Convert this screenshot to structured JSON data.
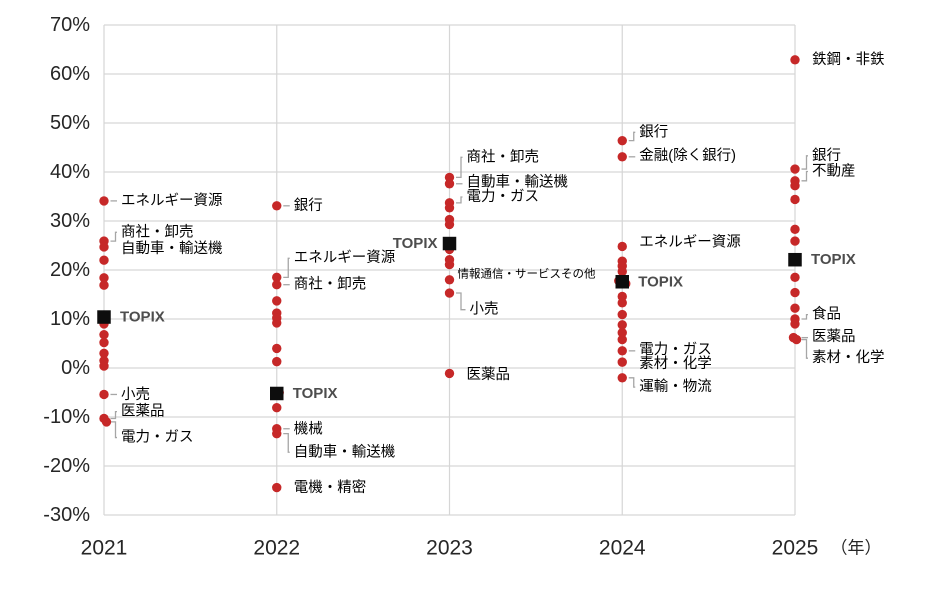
{
  "chart_data": {
    "type": "scatter",
    "title": "",
    "xlabel": "",
    "ylabel": "",
    "x_axis_unit": "（年）",
    "categories": [
      "2021",
      "2022",
      "2023",
      "2024",
      "2025"
    ],
    "y_ticks": [
      "70%",
      "60%",
      "50%",
      "40%",
      "30%",
      "20%",
      "10%",
      "0%",
      "-10%",
      "-20%",
      "-30%"
    ],
    "ylim": [
      -30,
      70
    ],
    "grid": true,
    "legend_position": "none",
    "colors": {
      "sector_dot": "#c62828",
      "topix_marker": "#0d0d0d",
      "gridline": "#d6d6d6",
      "leader": "#a6a6a6",
      "axis_text": "#262626",
      "label_text": "#000000",
      "topix_label_text": "#4d4d4d"
    },
    "series": [
      {
        "name": "TOPIX",
        "marker": "square",
        "values": [
          10.4,
          -5.2,
          25.4,
          17.6,
          22.1
        ],
        "label": "TOPIX",
        "label_sides": [
          "right",
          "right",
          "left",
          "right",
          "right"
        ]
      },
      {
        "name": "sectors",
        "marker": "dot",
        "values_by_year": [
          [
            34.1,
            25.9,
            24.7,
            22.0,
            18.4,
            16.9,
            9.0,
            6.8,
            5.2,
            3.0,
            1.5,
            0.4,
            -5.4,
            -10.3,
            {
              "v": -11.0,
              "dx": 2.5
            }
          ],
          [
            33.1,
            18.5,
            17.0,
            13.7,
            11.2,
            10.2,
            9.2,
            4.0,
            1.3,
            {
              "v": -5.0,
              "dx": 2.5
            },
            -8.1,
            -12.4,
            -13.4,
            -24.4
          ],
          [
            38.9,
            37.6,
            33.7,
            32.7,
            30.3,
            29.3,
            24.2,
            22.1,
            21.1,
            18.0,
            15.3,
            -1.1
          ],
          [
            46.4,
            43.1,
            24.8,
            21.8,
            20.8,
            19.7,
            {
              "v": 17.8,
              "dx": -3.5
            },
            {
              "v": 17.2,
              "dx": 3.5
            },
            14.6,
            13.3,
            10.9,
            8.8,
            7.2,
            5.8,
            3.5,
            1.2,
            -2.0
          ],
          [
            62.9,
            40.6,
            38.2,
            37.2,
            34.4,
            28.3,
            25.9,
            18.5,
            15.4,
            12.2,
            10.0,
            9.0,
            {
              "v": 6.2,
              "dx": -1.5
            },
            {
              "v": 5.8,
              "dx": 1.5
            }
          ]
        ]
      }
    ],
    "annotations": [
      {
        "year": 0,
        "text": "エネルギー資源",
        "dot": 34.1,
        "label": 34.1,
        "leader": "dash"
      },
      {
        "year": 0,
        "text": "商社・卸売",
        "dot": 25.9,
        "label": 27.7,
        "leader": "elbow"
      },
      {
        "year": 0,
        "text": "自動車・輸送機",
        "dot": 24.7,
        "label": 24.3,
        "leader": "none"
      },
      {
        "year": 0,
        "text": "小売",
        "dot": -5.4,
        "label": -5.5,
        "leader": "dash"
      },
      {
        "year": 0,
        "text": "医薬品",
        "dot": -10.3,
        "label": -8.9,
        "leader": "elbow"
      },
      {
        "year": 0,
        "text": "電力・ガス",
        "dot": -11.0,
        "label": -14.2,
        "leader": "elbow"
      },
      {
        "year": 1,
        "text": "銀行",
        "dot": 33.1,
        "label": 33.1,
        "leader": "dash"
      },
      {
        "year": 1,
        "text": "エネルギー資源",
        "dot": 18.5,
        "label": 22.4,
        "leader": "elbow"
      },
      {
        "year": 1,
        "text": "商社・卸売",
        "dot": 17.0,
        "label": 17.0,
        "leader": "dash"
      },
      {
        "year": 1,
        "text": "機械",
        "dot": -12.4,
        "label": -12.6,
        "leader": "dash"
      },
      {
        "year": 1,
        "text": "自動車・輸送機",
        "dot": -13.4,
        "label": -17.2,
        "leader": "elbow"
      },
      {
        "year": 1,
        "text": "電機・精密",
        "dot": -24.4,
        "label": -24.5,
        "leader": "none"
      },
      {
        "year": 2,
        "text": "商社・卸売",
        "dot": 38.9,
        "label": 43.0,
        "leader": "elbow"
      },
      {
        "year": 2,
        "text": "自動車・輸送機",
        "dot": 37.6,
        "label": 37.9,
        "leader": "dash"
      },
      {
        "year": 2,
        "text": "電力・ガス",
        "dot": 33.7,
        "label": 34.9,
        "leader": "elbow"
      },
      {
        "year": 2,
        "text": "情報通信・サービスその他",
        "dot": 18.0,
        "label": 19.1,
        "leader": "none",
        "size": 11.5,
        "dx": 8
      },
      {
        "year": 2,
        "text": "小売",
        "dot": 15.3,
        "label": 11.9,
        "leader": "elbow",
        "dx": 20
      },
      {
        "year": 2,
        "text": "医薬品",
        "dot": -1.1,
        "label": -1.4,
        "leader": "none"
      },
      {
        "year": 3,
        "text": "銀行",
        "dot": 46.4,
        "label": 48.1,
        "leader": "elbow"
      },
      {
        "year": 3,
        "text": "金融(除く銀行)",
        "dot": 43.1,
        "label": 43.3,
        "leader": "dash"
      },
      {
        "year": 3,
        "text": "エネルギー資源",
        "dot": 24.8,
        "label": 25.6,
        "leader": "none"
      },
      {
        "year": 3,
        "text": "電力・ガス",
        "dot": 3.5,
        "label": 3.7,
        "leader": "dash"
      },
      {
        "year": 3,
        "text": "素材・化学",
        "dot": 1.2,
        "label": 0.8,
        "leader": "none"
      },
      {
        "year": 3,
        "text": "運輸・物流",
        "dot": -2.0,
        "label": -3.9,
        "leader": "elbow"
      },
      {
        "year": 4,
        "text": "鉄鋼・非鉄",
        "dot": 62.9,
        "label": 62.9,
        "leader": "none"
      },
      {
        "year": 4,
        "text": "銀行",
        "dot": 40.6,
        "label": 43.3,
        "leader": "elbow"
      },
      {
        "year": 4,
        "text": "不動産",
        "dot": 38.2,
        "label": 40.1,
        "leader": "elbow"
      },
      {
        "year": 4,
        "text": "食品",
        "dot": 10.0,
        "label": 10.9,
        "leader": "elbow"
      },
      {
        "year": 4,
        "text": "医薬品",
        "dot": 6.2,
        "label": 6.3,
        "leader": "dash"
      },
      {
        "year": 4,
        "text": "素材・化学",
        "dot": 5.8,
        "label": 2.0,
        "leader": "elbow"
      }
    ]
  }
}
